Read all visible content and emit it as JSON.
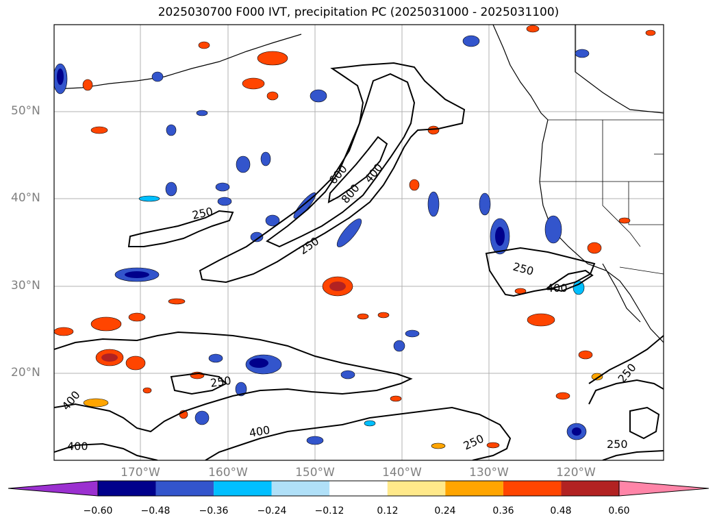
{
  "title": "2025030700 F000 IVT, precipitation PC (2025031000 - 2025031100)",
  "map": {
    "lat_labels": [
      "50°N",
      "40°N",
      "30°N",
      "20°N"
    ],
    "lon_labels": [
      "170°W",
      "160°W",
      "150°W",
      "140°W",
      "130°W",
      "120°W"
    ],
    "contour_labels": [
      "250",
      "600",
      "400",
      "800",
      "250",
      "250",
      "400",
      "250",
      "400",
      "400",
      "400",
      "250",
      "250",
      "250"
    ]
  },
  "colorbar": {
    "ticks": [
      "−0.60",
      "−0.48",
      "−0.36",
      "−0.24",
      "−0.12",
      "0.12",
      "0.24",
      "0.36",
      "0.48",
      "0.60"
    ],
    "colors": [
      "#9b30d0",
      "#00008b",
      "#3355cc",
      "#00bfff",
      "#b0e0f8",
      "#ffffff",
      "#ffe98a",
      "#ffa500",
      "#ff4500",
      "#b22222",
      "#ff85a8"
    ]
  }
}
